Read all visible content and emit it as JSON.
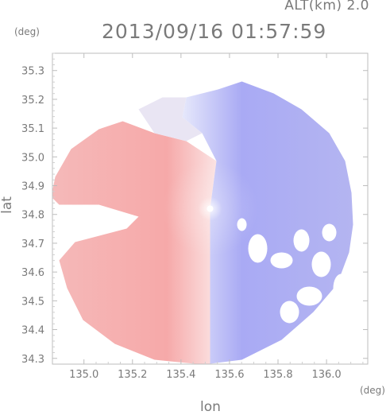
{
  "header": {
    "altitude": "ALT(km) 2.0",
    "datetime": "2013/09/16 01:57:59"
  },
  "chart_data": {
    "type": "heatmap",
    "title": "2013/09/16 01:57:59",
    "subtitle": "ALT(km) 2.0",
    "xlabel": "lon",
    "ylabel": "lat",
    "x_unit": "(deg)",
    "y_unit": "(deg)",
    "xlim": [
      134.87,
      136.17
    ],
    "ylim": [
      34.28,
      35.36
    ],
    "x_ticks": [
      135.0,
      135.2,
      135.4,
      135.6,
      135.8,
      136.0
    ],
    "x_tick_labels": [
      "135.0",
      "135.2",
      "135.4",
      "135.6",
      "135.8",
      "136.0"
    ],
    "y_ticks": [
      34.3,
      34.4,
      34.5,
      34.6,
      34.7,
      34.8,
      34.9,
      35.0,
      35.1,
      35.2,
      35.3
    ],
    "y_tick_labels": [
      "34.3",
      "34.4",
      "34.5",
      "34.6",
      "34.7",
      "34.8",
      "34.9",
      "35.0",
      "35.1",
      "35.2",
      "35.3"
    ],
    "radar_center": {
      "lon": 135.52,
      "lat": 34.82
    },
    "colors": {
      "positive": "#f4a0a0",
      "negative": "#9c9cf2",
      "axes": "#bdbdbd"
    }
  }
}
